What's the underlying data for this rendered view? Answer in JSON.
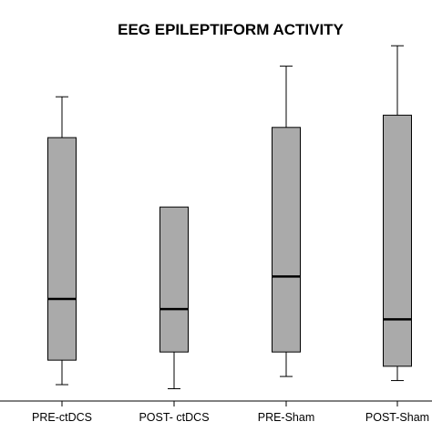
{
  "chart_data": {
    "type": "boxplot",
    "title": "EEG EPILEPTIFORM ACTIVITY",
    "xlabel": "",
    "ylabel": "",
    "categories": [
      "PRE-ctDCS",
      "POST- ctDCS",
      "PRE-Sham",
      "POST-Sham"
    ],
    "boxes": [
      {
        "whisker_low": 4,
        "q1": 16,
        "median": 46,
        "q3": 125,
        "whisker_high": 145
      },
      {
        "whisker_low": 2,
        "q1": 20,
        "median": 41,
        "q3": 91,
        "whisker_high": 91
      },
      {
        "whisker_low": 8,
        "q1": 20,
        "median": 57,
        "q3": 130,
        "whisker_high": 160
      },
      {
        "whisker_low": 6,
        "q1": 13,
        "median": 36,
        "q3": 136,
        "whisker_high": 170
      }
    ],
    "ylim": [
      0,
      175
    ],
    "box_color": "#aaaaaa",
    "line_color": "#000000",
    "grid": false,
    "legend": "none"
  }
}
